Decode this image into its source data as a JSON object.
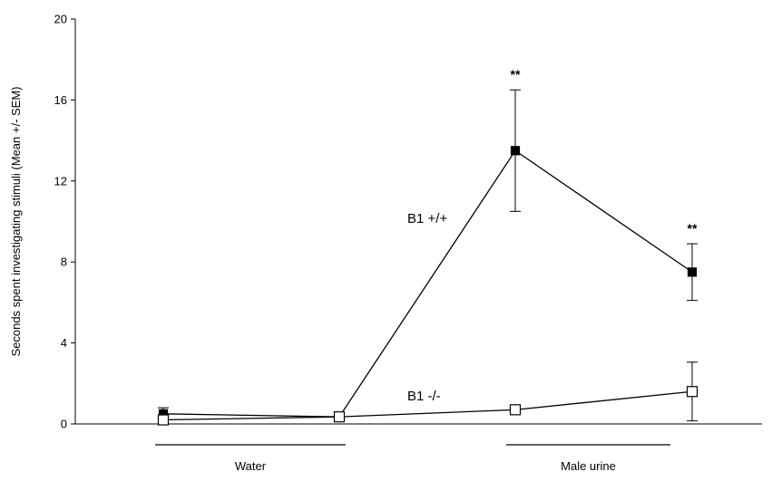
{
  "chart_data": {
    "type": "line",
    "title": "",
    "xlabel": "",
    "ylabel": "Seconds spent investigating stimuli (Mean +/- SEM)",
    "ylim": [
      0,
      20
    ],
    "yticks": [
      "0",
      "4",
      "8",
      "12",
      "16",
      "20"
    ],
    "x": [
      1,
      2,
      3,
      4
    ],
    "groups": [
      {
        "label": "Water",
        "x_range": [
          1,
          2
        ]
      },
      {
        "label": "Male urine",
        "x_range": [
          3,
          4
        ]
      }
    ],
    "series": [
      {
        "name": "B1 +/+",
        "marker": "filled-square",
        "values": [
          0.5,
          0.35,
          13.5,
          7.5
        ],
        "errors": [
          0.3,
          0.2,
          3.0,
          1.4
        ],
        "significance": [
          "",
          "",
          "**",
          "**"
        ]
      },
      {
        "name": "B1 -/-",
        "marker": "open-square",
        "values": [
          0.2,
          0.35,
          0.7,
          1.6
        ],
        "errors": [
          0.1,
          0.1,
          0.1,
          1.45
        ],
        "significance": [
          "",
          "",
          "",
          ""
        ]
      }
    ],
    "grid": false,
    "legend": "inline labels"
  }
}
